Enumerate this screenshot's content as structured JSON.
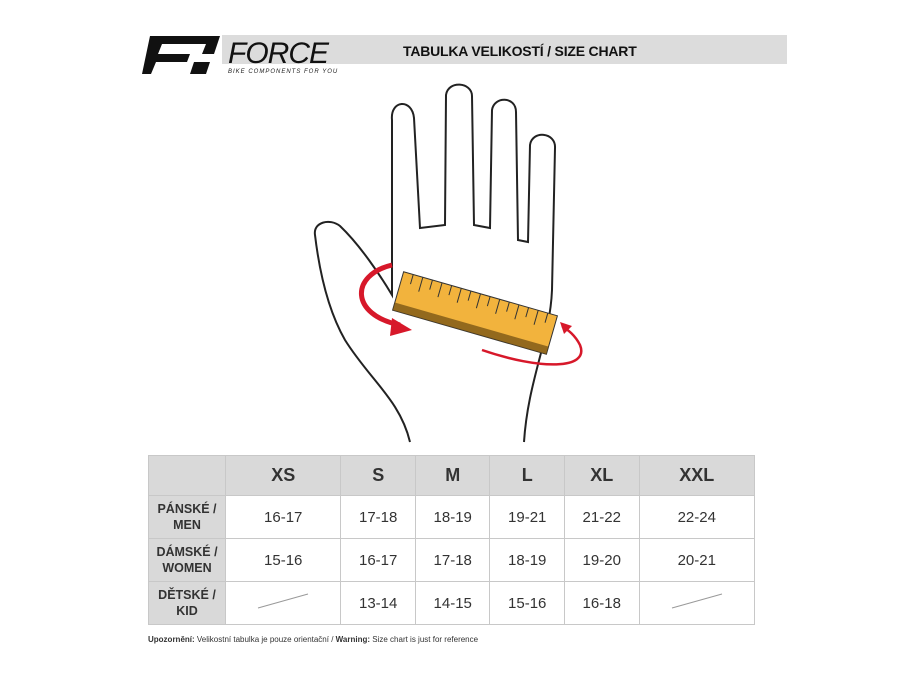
{
  "header": {
    "brand": "FORCE",
    "tagline": "BIKE COMPONENTS FOR YOU",
    "title": "TABULKA VELIKOSTÍ / SIZE CHART"
  },
  "colors": {
    "ruler": "#f2b33d",
    "arrow": "#d7182a",
    "header_bg": "#d9d9d9"
  },
  "table": {
    "columns": [
      "XS",
      "S",
      "M",
      "L",
      "XL",
      "XXL"
    ],
    "rows": [
      {
        "label_cz": "PÁNSKÉ /",
        "label_en": "MEN",
        "values": [
          "16-17",
          "17-18",
          "18-19",
          "19-21",
          "21-22",
          "22-24"
        ]
      },
      {
        "label_cz": "DÁMSKÉ /",
        "label_en": "WOMEN",
        "values": [
          "15-16",
          "16-17",
          "17-18",
          "18-19",
          "19-20",
          "20-21"
        ]
      },
      {
        "label_cz": "DĚTSKÉ /",
        "label_en": "KID",
        "values": [
          null,
          "13-14",
          "14-15",
          "15-16",
          "16-18",
          null
        ]
      }
    ]
  },
  "note": {
    "warn_cz_label": "Upozornění:",
    "warn_cz": " Velikostní tabulka je pouze orientační / ",
    "warn_en_label": "Warning:",
    "warn_en": " Size chart is just for reference"
  }
}
